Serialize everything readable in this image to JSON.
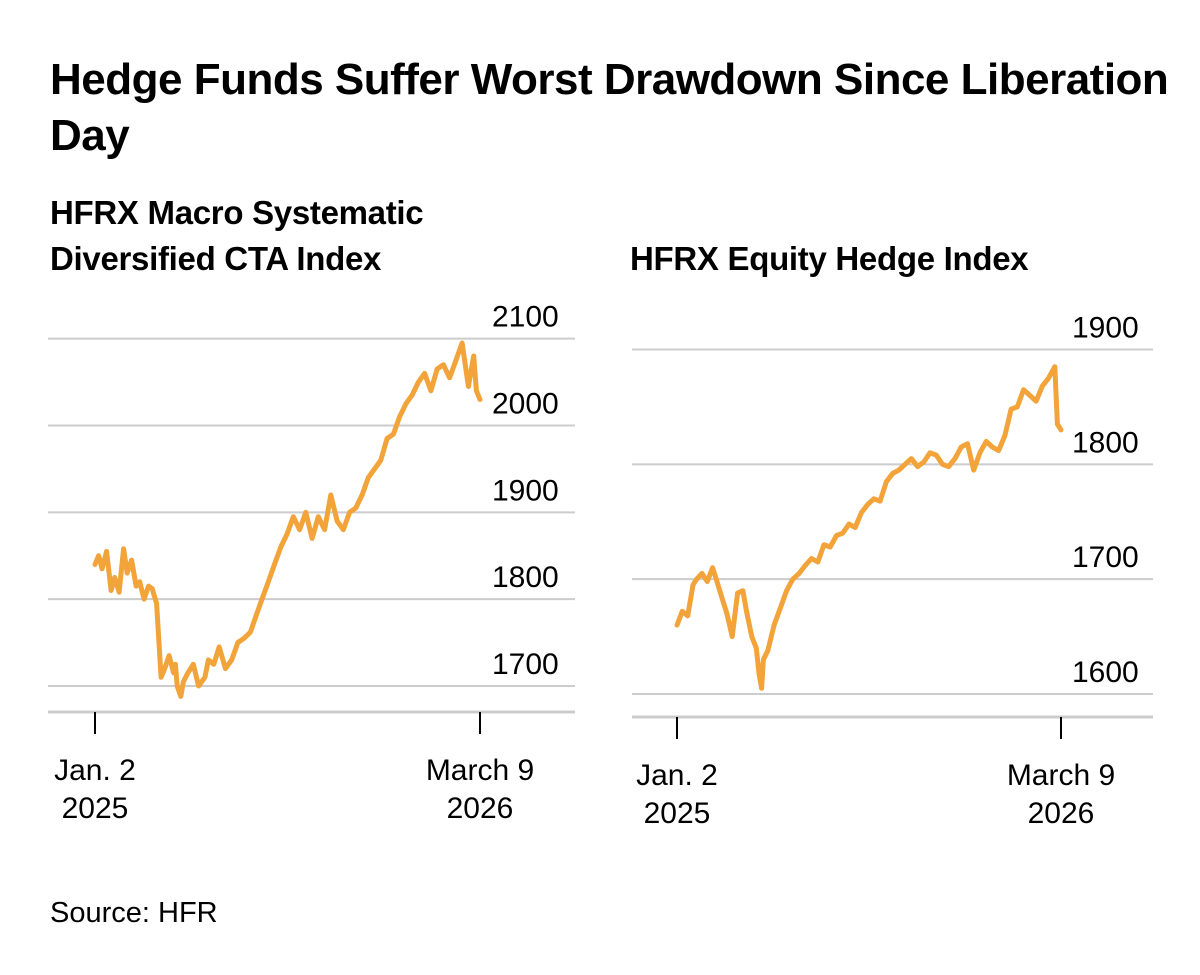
{
  "title": "Hedge Funds Suffer Worst Drawdown Since Liberation Day",
  "source": "Source: HFR",
  "chart_data": [
    {
      "type": "line",
      "title": "HFRX Macro Systematic Diversified CTA Index",
      "xlabel": "",
      "ylabel": "",
      "x_tick_labels": [
        [
          "Jan. 2",
          "2025"
        ],
        [
          "March 9",
          "2026"
        ]
      ],
      "x_range": [
        "2025-01-02",
        "2026-03-09"
      ],
      "y_ticks": [
        1700,
        1800,
        1900,
        2000,
        2100
      ],
      "ylim": [
        1670,
        2110
      ],
      "y_axis_side": "right",
      "grid": true,
      "color": "#f2a33a",
      "series": [
        {
          "x": [
            "2025-01-02",
            "2025-01-06",
            "2025-01-10",
            "2025-01-15",
            "2025-01-20",
            "2025-01-24",
            "2025-01-29",
            "2025-02-03",
            "2025-02-07",
            "2025-02-12",
            "2025-02-17",
            "2025-02-21",
            "2025-02-26",
            "2025-03-03",
            "2025-03-07",
            "2025-03-12",
            "2025-03-17",
            "2025-03-21",
            "2025-03-26",
            "2025-03-31",
            "2025-04-02",
            "2025-04-04",
            "2025-04-08",
            "2025-04-11",
            "2025-04-16",
            "2025-04-22",
            "2025-04-28",
            "2025-05-05",
            "2025-05-09",
            "2025-05-15",
            "2025-05-21",
            "2025-05-28",
            "2025-06-04",
            "2025-06-11",
            "2025-06-18",
            "2025-06-25",
            "2025-07-01",
            "2025-07-08",
            "2025-07-15",
            "2025-07-22",
            "2025-07-29",
            "2025-08-05",
            "2025-08-12",
            "2025-08-19",
            "2025-08-26",
            "2025-09-02",
            "2025-09-09",
            "2025-09-16",
            "2025-09-23",
            "2025-09-30",
            "2025-10-07",
            "2025-10-14",
            "2025-10-21",
            "2025-10-28",
            "2025-11-04",
            "2025-11-11",
            "2025-11-18",
            "2025-11-25",
            "2025-12-02",
            "2025-12-09",
            "2025-12-16",
            "2025-12-23",
            "2025-12-30",
            "2026-01-06",
            "2026-01-13",
            "2026-01-20",
            "2026-01-27",
            "2026-02-03",
            "2026-02-10",
            "2026-02-17",
            "2026-02-24",
            "2026-03-02",
            "2026-03-05",
            "2026-03-09"
          ],
          "values": [
            1840,
            1850,
            1835,
            1855,
            1810,
            1825,
            1808,
            1858,
            1830,
            1845,
            1815,
            1820,
            1800,
            1815,
            1812,
            1795,
            1710,
            1720,
            1735,
            1715,
            1725,
            1700,
            1688,
            1705,
            1715,
            1725,
            1700,
            1710,
            1730,
            1725,
            1745,
            1720,
            1730,
            1750,
            1755,
            1762,
            1780,
            1800,
            1820,
            1840,
            1860,
            1875,
            1895,
            1880,
            1900,
            1870,
            1895,
            1880,
            1920,
            1890,
            1880,
            1900,
            1905,
            1920,
            1940,
            1950,
            1960,
            1985,
            1990,
            2010,
            2025,
            2035,
            2050,
            2060,
            2040,
            2065,
            2070,
            2055,
            2075,
            2095,
            2045,
            2080,
            2040,
            2030
          ]
        }
      ]
    },
    {
      "type": "line",
      "title": "HFRX Equity Hedge Index",
      "xlabel": "",
      "ylabel": "",
      "x_tick_labels": [
        [
          "Jan. 2",
          "2025"
        ],
        [
          "March 9",
          "2026"
        ]
      ],
      "x_range": [
        "2025-01-02",
        "2026-03-09"
      ],
      "y_ticks": [
        1600,
        1700,
        1800,
        1900
      ],
      "ylim": [
        1580,
        1910
      ],
      "y_axis_side": "right",
      "grid": true,
      "color": "#f2a33a",
      "series": [
        {
          "x": [
            "2025-01-02",
            "2025-01-08",
            "2025-01-14",
            "2025-01-20",
            "2025-01-24",
            "2025-01-30",
            "2025-02-05",
            "2025-02-11",
            "2025-02-17",
            "2025-02-21",
            "2025-02-27",
            "2025-03-05",
            "2025-03-11",
            "2025-03-17",
            "2025-03-21",
            "2025-03-27",
            "2025-04-01",
            "2025-04-04",
            "2025-04-07",
            "2025-04-09",
            "2025-04-14",
            "2025-04-21",
            "2025-04-28",
            "2025-05-05",
            "2025-05-12",
            "2025-05-19",
            "2025-05-26",
            "2025-06-02",
            "2025-06-09",
            "2025-06-16",
            "2025-06-23",
            "2025-06-30",
            "2025-07-07",
            "2025-07-14",
            "2025-07-21",
            "2025-07-28",
            "2025-08-04",
            "2025-08-11",
            "2025-08-18",
            "2025-08-25",
            "2025-09-01",
            "2025-09-08",
            "2025-09-15",
            "2025-09-22",
            "2025-09-29",
            "2025-10-06",
            "2025-10-13",
            "2025-10-20",
            "2025-10-27",
            "2025-11-03",
            "2025-11-10",
            "2025-11-17",
            "2025-11-24",
            "2025-12-01",
            "2025-12-08",
            "2025-12-15",
            "2025-12-22",
            "2025-12-29",
            "2026-01-05",
            "2026-01-12",
            "2026-01-19",
            "2026-01-26",
            "2026-02-02",
            "2026-02-09",
            "2026-02-16",
            "2026-02-23",
            "2026-03-02",
            "2026-03-05",
            "2026-03-09"
          ],
          "values": [
            1660,
            1672,
            1668,
            1695,
            1700,
            1705,
            1698,
            1710,
            1695,
            1685,
            1670,
            1650,
            1688,
            1690,
            1672,
            1650,
            1640,
            1618,
            1605,
            1630,
            1638,
            1660,
            1675,
            1690,
            1700,
            1705,
            1712,
            1718,
            1715,
            1730,
            1728,
            1738,
            1740,
            1748,
            1745,
            1758,
            1765,
            1770,
            1768,
            1785,
            1792,
            1795,
            1800,
            1805,
            1798,
            1802,
            1810,
            1808,
            1800,
            1798,
            1805,
            1815,
            1818,
            1795,
            1810,
            1820,
            1815,
            1812,
            1825,
            1848,
            1850,
            1865,
            1860,
            1855,
            1868,
            1875,
            1885,
            1835,
            1830
          ]
        }
      ]
    }
  ]
}
